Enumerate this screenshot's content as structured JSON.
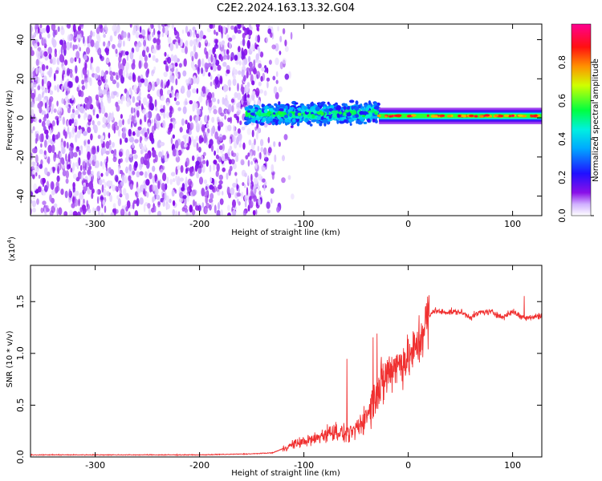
{
  "chart_data": [
    {
      "type": "heatmap",
      "title": "C2E2.2024.163.13.32.G04",
      "xlabel": "Height of straight line (km)",
      "ylabel": "Frequency (Hz)",
      "xlim": [
        -362,
        128
      ],
      "ylim": [
        -50,
        48
      ],
      "x_ticks": [
        -300,
        -200,
        -100,
        0,
        100
      ],
      "y_ticks": [
        -40,
        -20,
        0,
        20,
        40
      ],
      "colorbar": {
        "label": "Normalized spectral amplitude",
        "range": [
          0,
          1
        ],
        "ticks": [
          "0.0",
          "0.2",
          "0.4",
          "0.6",
          "0.8"
        ],
        "colors": [
          "#ffffff",
          "#7a00e0",
          "#0018ff",
          "#00e8ff",
          "#00ff30",
          "#d8ff00",
          "#ff8800",
          "#ff0030",
          "#ff00a0"
        ]
      },
      "regions": [
        {
          "name": "scattered noise",
          "x_range": [
            -362,
            -142
          ],
          "y_range": [
            -50,
            48
          ],
          "amplitude": 0.1
        },
        {
          "name": "noise fade",
          "x_range": [
            -142,
            -110
          ],
          "y_range": [
            -50,
            48
          ],
          "amplitude": 0.03
        },
        {
          "name": "broad signal",
          "x_range": [
            -155,
            -28
          ],
          "y_center": 0,
          "y_halfwidth": 8,
          "amplitude": 0.5
        },
        {
          "name": "narrow tone",
          "x_range": [
            -28,
            128
          ],
          "y_center": 1,
          "y_halfwidth": 1.5,
          "amplitude": 0.9
        }
      ]
    },
    {
      "type": "line",
      "xlabel": "Height of straight line (km)",
      "ylabel": "SNR (10 * v/v)",
      "y_multiplier": "(x10",
      "y_multiplier_exp": "4",
      "y_multiplier_close": ")",
      "xlim": [
        -362,
        128
      ],
      "ylim": [
        0,
        18500
      ],
      "x_ticks": [
        -300,
        -200,
        -100,
        0,
        100
      ],
      "y_ticks": [
        0,
        5000,
        10000,
        15000
      ],
      "y_tick_labels": [
        "0.0",
        "0.5",
        "1.0",
        "1.5"
      ],
      "color": "#f03030",
      "series": [
        {
          "x": [
            -362,
            -300,
            -200,
            -150,
            -130,
            -120,
            -110,
            -100,
            -90,
            -80,
            -70,
            -60,
            -50,
            -40,
            -35,
            -30,
            -25,
            -20,
            -15,
            -10,
            -5,
            0,
            5,
            10,
            15,
            20,
            25,
            30,
            40,
            50,
            60,
            70,
            80,
            90,
            100,
            110,
            120,
            128
          ],
          "y": [
            200,
            200,
            200,
            300,
            400,
            800,
            1200,
            1500,
            1700,
            2200,
            2500,
            2200,
            2500,
            4000,
            5000,
            6500,
            7000,
            8000,
            8800,
            9000,
            9200,
            9500,
            10000,
            11000,
            12500,
            13500,
            14200,
            14000,
            14000,
            14000,
            13500,
            14000,
            14000,
            13500,
            14000,
            13500,
            13500,
            13700
          ]
        }
      ]
    }
  ]
}
